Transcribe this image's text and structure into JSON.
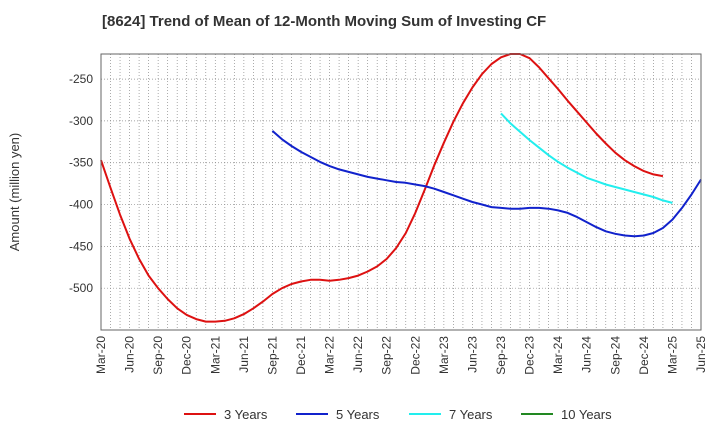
{
  "chart_data": {
    "type": "line",
    "title": "[8624]  Trend of Mean of 12-Month Moving Sum of Investing CF",
    "xlabel": "",
    "ylabel": "Amount (million yen)",
    "x_ticks": [
      "Mar-20",
      "Jun-20",
      "Sep-20",
      "Dec-20",
      "Mar-21",
      "Jun-21",
      "Sep-21",
      "Dec-21",
      "Mar-22",
      "Jun-22",
      "Sep-22",
      "Dec-22",
      "Mar-23",
      "Jun-23",
      "Sep-23",
      "Dec-23",
      "Mar-24",
      "Jun-24",
      "Sep-24",
      "Dec-24",
      "Mar-25",
      "Jun-25"
    ],
    "y_ticks": [
      -250,
      -300,
      -350,
      -400,
      -450,
      -500
    ],
    "ylim": [
      -550,
      -220
    ],
    "grid": true,
    "legend_position": "bottom",
    "series": [
      {
        "name": "3 Years",
        "color": "#dd1111",
        "start_index": 0,
        "values": [
          -347,
          -380,
          -412,
          -441,
          -465,
          -485,
          -500,
          -513,
          -524,
          -532,
          -537,
          -540,
          -540,
          -539,
          -536,
          -531,
          -524,
          -516,
          -507,
          -500,
          -495,
          -492,
          -490,
          -490,
          -491,
          -490,
          -488,
          -485,
          -480,
          -474,
          -465,
          -452,
          -434,
          -410,
          -382,
          -353,
          -326,
          -301,
          -279,
          -260,
          -244,
          -232,
          -224,
          -220,
          -220,
          -225,
          -236,
          -249,
          -262,
          -276,
          -289,
          -302,
          -315,
          -327,
          -338,
          -347,
          -354,
          -360,
          -364,
          -366
        ]
      },
      {
        "name": "5 Years",
        "color": "#1122cc",
        "start_index": 18,
        "values": [
          -312,
          -322,
          -330,
          -337,
          -343,
          -349,
          -354,
          -358,
          -361,
          -364,
          -367,
          -369,
          -371,
          -373,
          -374,
          -376,
          -378,
          -381,
          -385,
          -389,
          -393,
          -397,
          -400,
          -403,
          -404,
          -405,
          -405,
          -404,
          -404,
          -405,
          -407,
          -410,
          -415,
          -421,
          -427,
          -432,
          -435,
          -437,
          -438,
          -437,
          -434,
          -428,
          -418,
          -404,
          -388,
          -370
        ]
      },
      {
        "name": "7 Years",
        "color": "#22eeee",
        "start_index": 42,
        "values": [
          -291,
          -303,
          -313,
          -323,
          -332,
          -341,
          -349,
          -356,
          -362,
          -368,
          -372,
          -376,
          -379,
          -382,
          -385,
          -388,
          -391,
          -395,
          -398
        ]
      },
      {
        "name": "10 Years",
        "color": "#228822",
        "start_index": 0,
        "values": []
      }
    ]
  }
}
